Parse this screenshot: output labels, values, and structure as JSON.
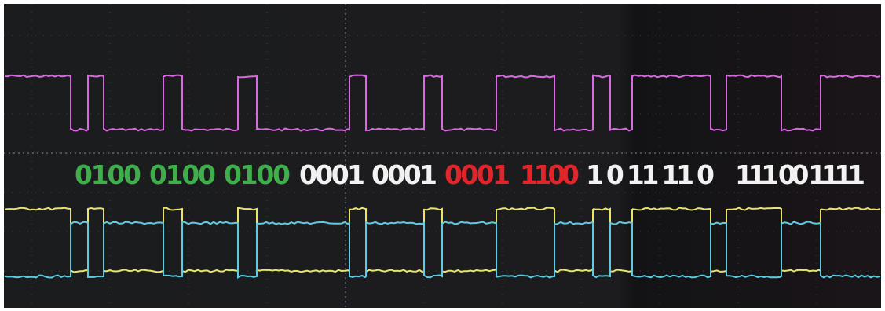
{
  "labels": [
    {
      "text": "0100",
      "color": "#3fae4b"
    },
    {
      "text": "0100",
      "color": "#3fae4b"
    },
    {
      "text": "0100",
      "color": "#3fae4b"
    },
    {
      "text": "0001",
      "color": "#f2f2f2"
    },
    {
      "text": "0001",
      "color": "#f2f2f2"
    },
    {
      "text": "0001",
      "color": "#e0262b"
    },
    {
      "text": "1100",
      "color": "#e0262b"
    },
    {
      "text": "1 0 11 11 0",
      "color": "#f2f2f2"
    },
    {
      "text": "111 00 1111",
      "color": "#f2f2f2"
    }
  ]
}
